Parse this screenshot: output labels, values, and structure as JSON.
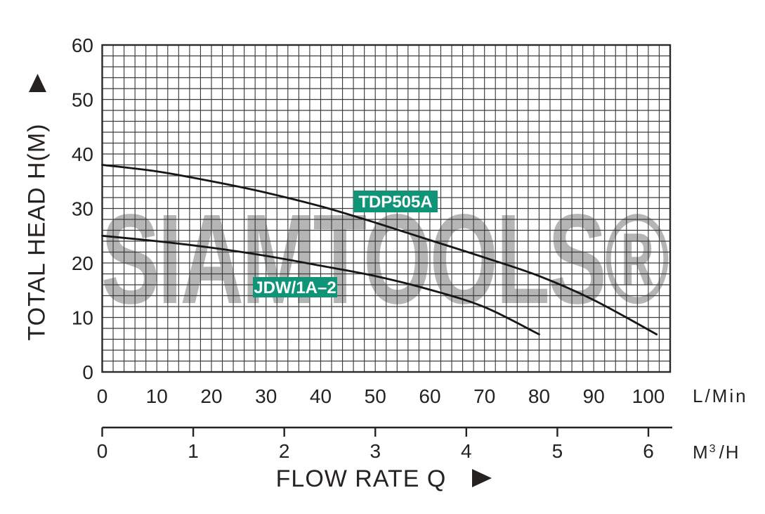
{
  "colors": {
    "background": "#ffffff",
    "text": "#262220",
    "grid_line": "#3c3c3c",
    "grid_border": "#2a2a2a",
    "curve": "#161616",
    "series_label_bg": "#0f9478",
    "series_label_text": "#ffffff",
    "watermark": "#b5b5b5"
  },
  "icons": {
    "y_axis_marker": "up-triangle-icon",
    "x_axis_marker": "right-triangle-icon"
  },
  "chart_data": {
    "type": "line",
    "title": "",
    "xlabel": "FLOW RATE Q",
    "ylabel": "TOTAL HEAD H(M)",
    "x_axis_title": "FLOW RATE Q",
    "y_axis": {
      "title": "TOTAL HEAD H(M)",
      "ticks": [
        0,
        10,
        20,
        30,
        40,
        50,
        60
      ],
      "range": [
        0,
        60
      ]
    },
    "x_axis_primary": {
      "unit": "L/Min",
      "ticks": [
        0,
        10,
        20,
        30,
        40,
        50,
        60,
        70,
        80,
        90,
        100
      ],
      "range": [
        0,
        104
      ]
    },
    "x_axis_secondary": {
      "unit": "M³/H",
      "unit_base": "M",
      "unit_sup": "3",
      "unit_rest": "/H",
      "ticks": [
        0,
        1,
        2,
        3,
        4,
        5,
        6
      ],
      "lmin_per_unit": 16.6667
    },
    "grid": {
      "on": true,
      "minor_step_lmin": 2,
      "minor_step_head_m": 2
    },
    "legend_position": "on-curve-labels",
    "series": [
      {
        "name": "TDP505A",
        "points_lmin_head": [
          [
            0,
            38
          ],
          [
            10,
            36.8
          ],
          [
            20,
            35
          ],
          [
            30,
            32.9
          ],
          [
            40,
            30.4
          ],
          [
            50,
            27.4
          ],
          [
            60,
            24.2
          ],
          [
            70,
            21.0
          ],
          [
            80,
            17.6
          ],
          [
            90,
            13.2
          ],
          [
            101.5,
            6.9
          ]
        ]
      },
      {
        "name": "JDW/1A–2",
        "points_lmin_head": [
          [
            0,
            25
          ],
          [
            10,
            24
          ],
          [
            20,
            22.8
          ],
          [
            30,
            21.3
          ],
          [
            40,
            19.5
          ],
          [
            50,
            17.6
          ],
          [
            60,
            15.1
          ],
          [
            70,
            11.9
          ],
          [
            80,
            6.9
          ]
        ]
      }
    ],
    "watermark": {
      "text": "SIAMTOOLS®"
    }
  }
}
